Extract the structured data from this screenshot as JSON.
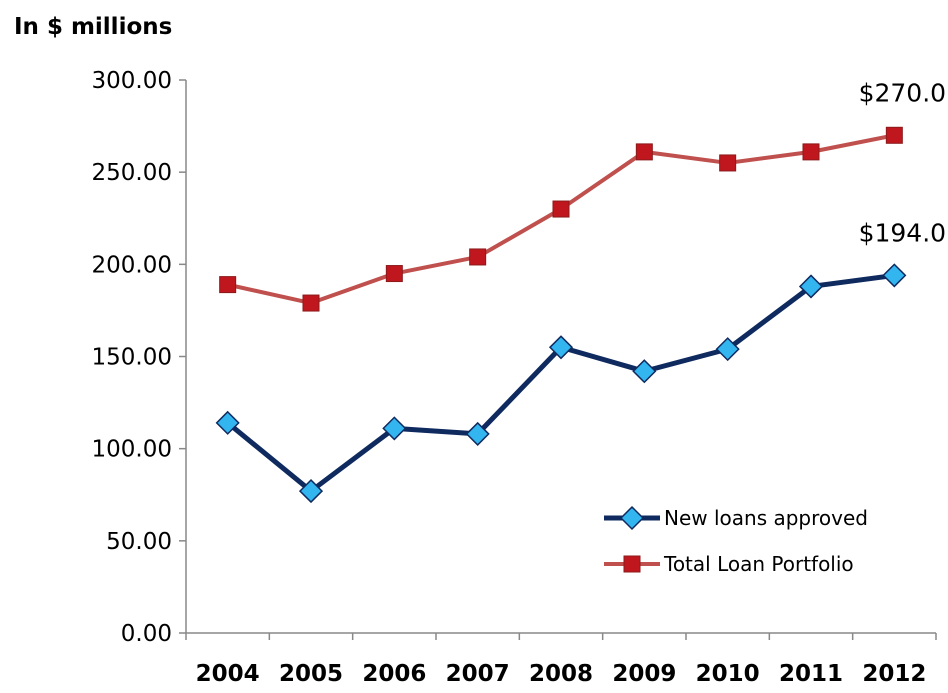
{
  "chart_data": {
    "type": "line",
    "ylabel": "In $ millions",
    "categories": [
      "2004",
      "2005",
      "2006",
      "2007",
      "2008",
      "2009",
      "2010",
      "2011",
      "2012"
    ],
    "ylim": [
      0,
      300
    ],
    "yticks": [
      "0.00",
      "50.00",
      "100.00",
      "150.00",
      "200.00",
      "250.00",
      "300.00"
    ],
    "grid": false,
    "legend_position": "bottom-right",
    "series": [
      {
        "name": "New loans approved",
        "values": [
          114,
          77,
          111,
          108,
          155,
          142,
          154,
          188,
          194
        ],
        "color": "#0F2A5F",
        "marker_color": "#33B5F0",
        "marker": "diamond",
        "end_label": "$194.0"
      },
      {
        "name": "Total Loan Portfolio",
        "values": [
          189,
          179,
          195,
          204,
          230,
          261,
          255,
          261,
          270
        ],
        "color": "#C0504D",
        "marker_color": "#C0171F",
        "marker": "square",
        "end_label": "$270.0"
      }
    ]
  }
}
